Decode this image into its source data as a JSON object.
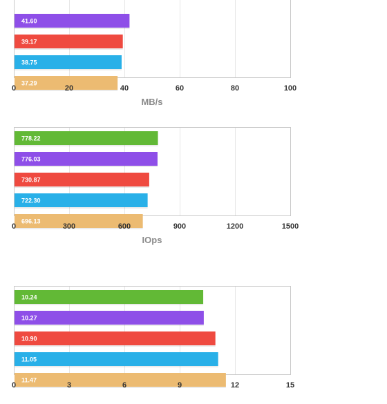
{
  "chart_data": [
    {
      "type": "bar",
      "orientation": "horizontal",
      "xlabel": "MB/s",
      "xlim": [
        0,
        100
      ],
      "ticks": [
        "0",
        "20",
        "40",
        "60",
        "80",
        "100"
      ],
      "grid": true,
      "bars": [
        {
          "value": 41.6,
          "label": "41.60",
          "color": "#8e4fe8"
        },
        {
          "value": 39.17,
          "label": "39.17",
          "color": "#ef4a40"
        },
        {
          "value": 38.75,
          "label": "38.75",
          "color": "#29b0e8"
        },
        {
          "value": 37.29,
          "label": "37.29",
          "color": "#ecbb72"
        }
      ]
    },
    {
      "type": "bar",
      "orientation": "horizontal",
      "xlabel": "IOps",
      "xlim": [
        0,
        1500
      ],
      "ticks": [
        "0",
        "300",
        "600",
        "900",
        "1200",
        "1500"
      ],
      "grid": true,
      "bars": [
        {
          "value": 778.22,
          "label": "778.22",
          "color": "#62b936"
        },
        {
          "value": 776.03,
          "label": "776.03",
          "color": "#8e4fe8"
        },
        {
          "value": 730.87,
          "label": "730.87",
          "color": "#ef4a40"
        },
        {
          "value": 722.3,
          "label": "722.30",
          "color": "#29b0e8"
        },
        {
          "value": 696.13,
          "label": "696.13",
          "color": "#ecbb72"
        }
      ]
    },
    {
      "type": "bar",
      "orientation": "horizontal",
      "xlabel": "",
      "xlim": [
        0,
        15
      ],
      "ticks": [
        "0",
        "3",
        "6",
        "9",
        "12",
        "15"
      ],
      "grid": true,
      "bars": [
        {
          "value": 10.24,
          "label": "10.24",
          "color": "#62b936"
        },
        {
          "value": 10.27,
          "label": "10.27",
          "color": "#8e4fe8"
        },
        {
          "value": 10.9,
          "label": "10.90",
          "color": "#ef4a40"
        },
        {
          "value": 11.05,
          "label": "11.05",
          "color": "#29b0e8"
        },
        {
          "value": 11.47,
          "label": "11.47",
          "color": "#ecbb72"
        }
      ]
    }
  ]
}
